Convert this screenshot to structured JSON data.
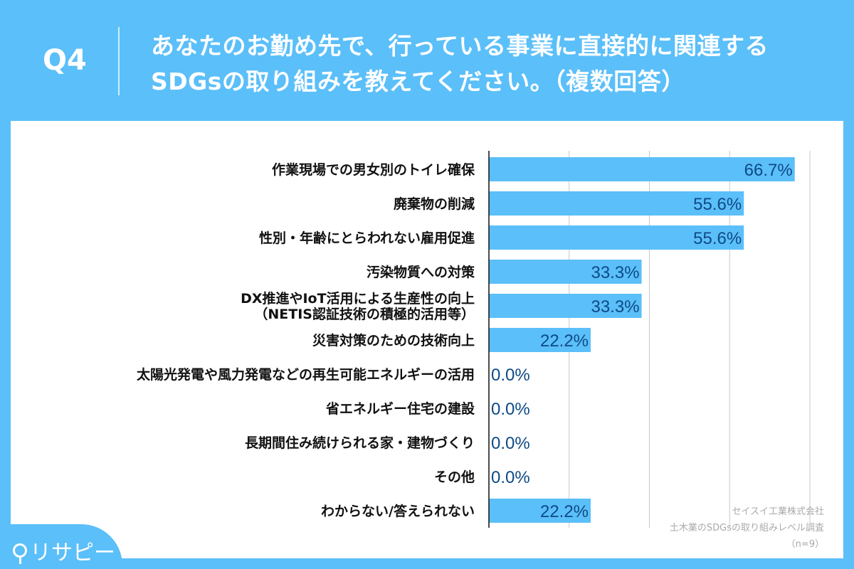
{
  "header": {
    "q_label": "Q4",
    "title_line1": "あなたのお勤め先で、行っている事業に直接的に関連する",
    "title_line2": "SDGsの取り組みを教えてください。（複数回答）"
  },
  "source": {
    "company": "セイスイ工業株式会社",
    "survey": "土木業のSDGsの取り組みレベル調査",
    "n": "（n=9）"
  },
  "brand": {
    "logo_text": "リサピー"
  },
  "colors": {
    "bar": "#5bbff9",
    "label": "#0d4a86",
    "grid": "#c8c8c8"
  },
  "chart_data": {
    "type": "bar",
    "orientation": "horizontal",
    "xlim": [
      0,
      70
    ],
    "grid": true,
    "categories": [
      "作業現場での男女別のトイレ確保",
      "廃棄物の削減",
      "性別・年齢にとらわれない雇用促進",
      "汚染物質への対策",
      "DX推進やIoT活用による生産性の向上\n（NETIS認証技術の積極的活用等）",
      "災害対策のための技術向上",
      "太陽光発電や風力発電などの再生可能エネルギーの活用",
      "省エネルギー住宅の建設",
      "長期間住み続けられる家・建物づくり",
      "その他",
      "わからない/答えられない"
    ],
    "values": [
      66.7,
      55.6,
      55.6,
      33.3,
      33.3,
      22.2,
      0.0,
      0.0,
      0.0,
      0.0,
      22.2
    ],
    "labels": [
      "66.7%",
      "55.6%",
      "55.6%",
      "33.3%",
      "33.3%",
      "22.2%",
      "0.0%",
      "0.0%",
      "0.0%",
      "0.0%",
      "22.2%"
    ]
  }
}
